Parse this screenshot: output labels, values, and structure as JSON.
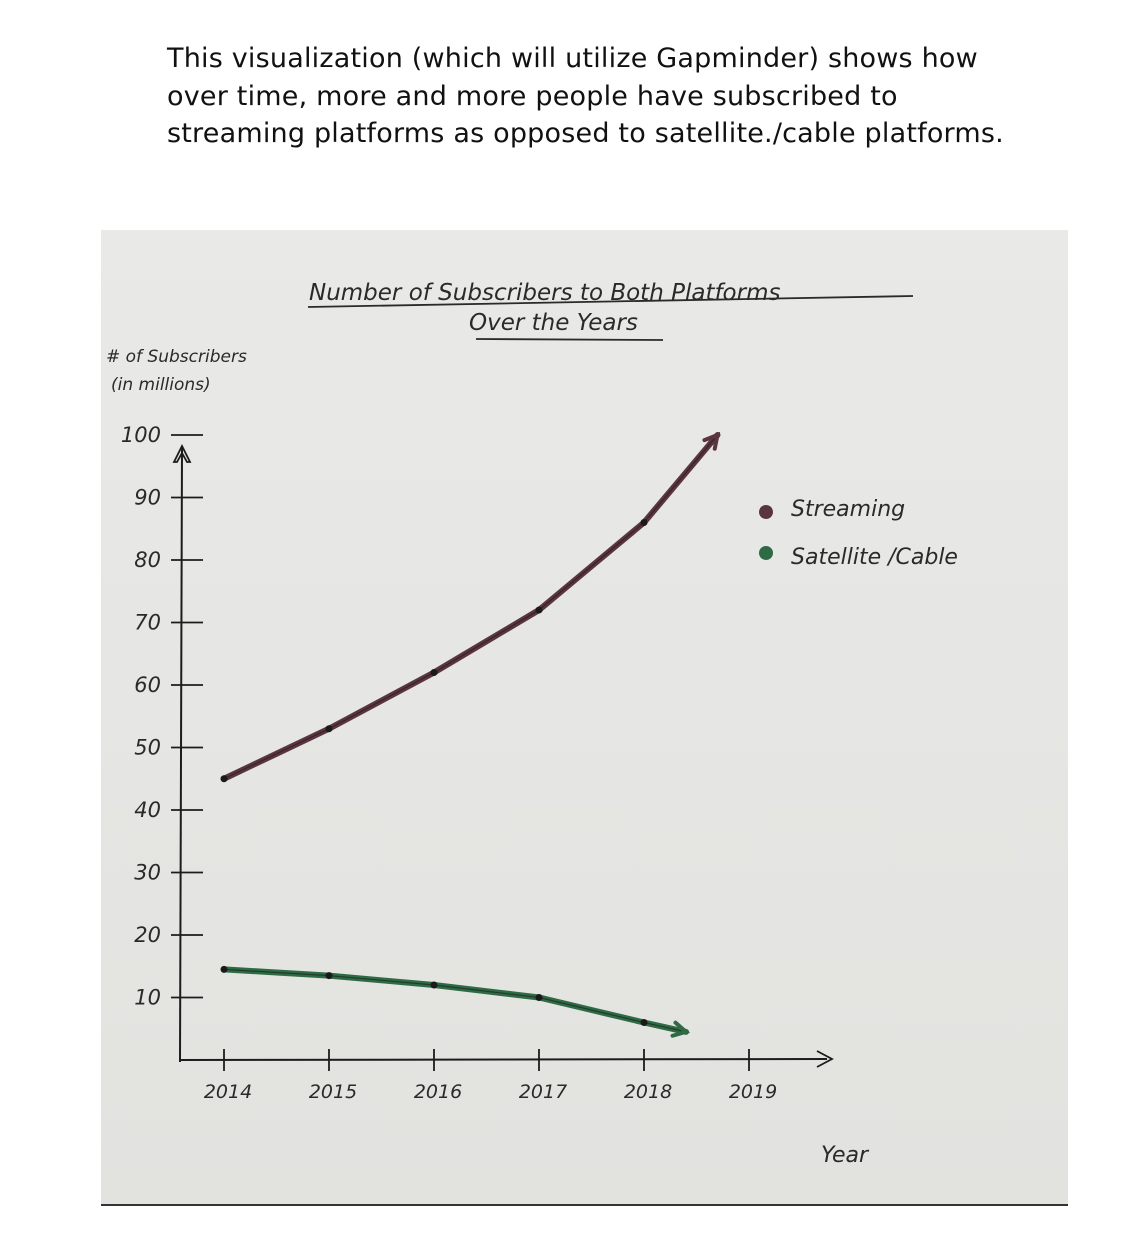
{
  "caption": "This visualization (which will utilize Gapminder) shows how over time, more and more people have subscribed to streaming platforms as opposed to satellite./cable platforms.",
  "chart_data": {
    "type": "line",
    "title": "Number of Subscribers to Both Platforms Over the Years",
    "title_line1": "Number of Subscribers to Both Platforms",
    "title_line2": "Over the Years",
    "ylabel_line1": "# of Subscribers",
    "ylabel_line2": "(in millions)",
    "xlabel": "Year",
    "x_ticks": [
      "2014",
      "2015",
      "2016",
      "2017",
      "2018",
      "2019"
    ],
    "y_ticks": [
      10,
      20,
      30,
      40,
      50,
      60,
      70,
      80,
      90,
      100
    ],
    "xlim": [
      2014,
      2019
    ],
    "ylim": [
      0,
      100
    ],
    "grid": false,
    "legend_position": "right",
    "series": [
      {
        "name": "Streaming",
        "color": "#5a3540",
        "x": [
          2014,
          2015,
          2016,
          2017,
          2018,
          2018.7
        ],
        "y": [
          45,
          53,
          62,
          72,
          86,
          100
        ]
      },
      {
        "name": "Satellite /Cable",
        "color": "#2e6b45",
        "x": [
          2014,
          2015,
          2016,
          2017,
          2018,
          2018.4
        ],
        "y": [
          14.5,
          13.5,
          12,
          10,
          6,
          4.5
        ]
      }
    ]
  }
}
